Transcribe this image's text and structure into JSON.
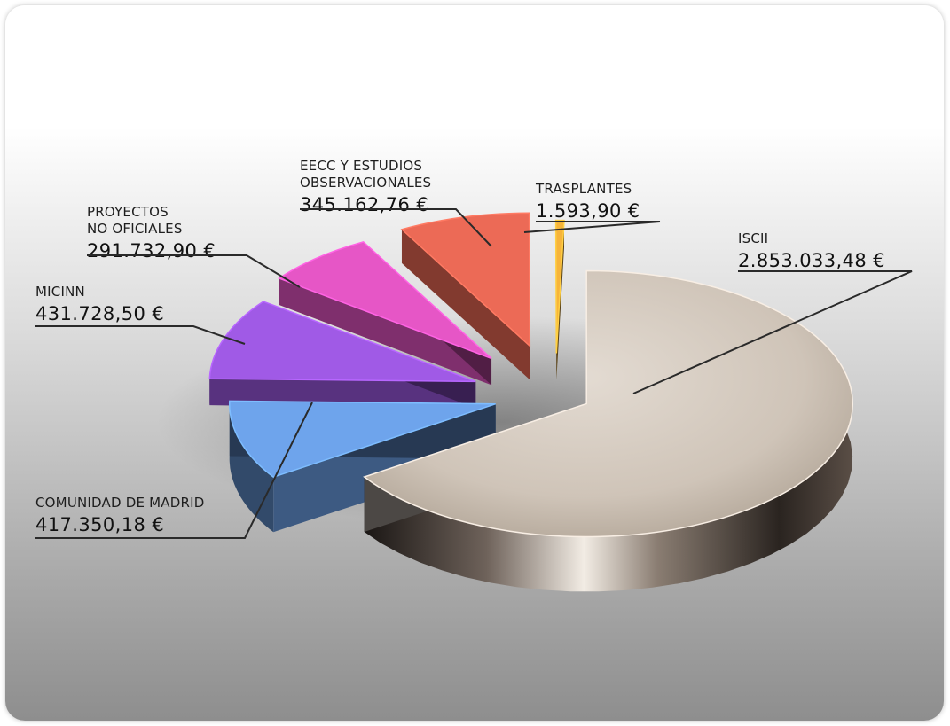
{
  "chart_data": {
    "type": "pie",
    "series": [
      {
        "labels": [
          "ISCII"
        ],
        "value": 2853033.48,
        "display": "2.853.033,48 €",
        "color": "#d8cfc6"
      },
      {
        "labels": [
          "COMUNIDAD DE MADRID"
        ],
        "value": 417350.18,
        "display": "417.350,18 €",
        "color": "#6ea4ec"
      },
      {
        "labels": [
          "MICINN"
        ],
        "value": 431728.5,
        "display": "431.728,50 €",
        "color": "#a05ae6"
      },
      {
        "labels": [
          "PROYECTOS",
          "NO OFICIALES"
        ],
        "value": 291732.9,
        "display": "291.732,90 €",
        "color": "#e656c6"
      },
      {
        "labels": [
          "EECC Y ESTUDIOS",
          "OBSERVACIONALES"
        ],
        "value": 345162.76,
        "display": "345.162,76 €",
        "color": "#ec6a56"
      },
      {
        "labels": [
          "TRASPLANTES"
        ],
        "value": 1593.9,
        "display": "1.593,90 €",
        "color": "#f6b43a"
      }
    ]
  }
}
